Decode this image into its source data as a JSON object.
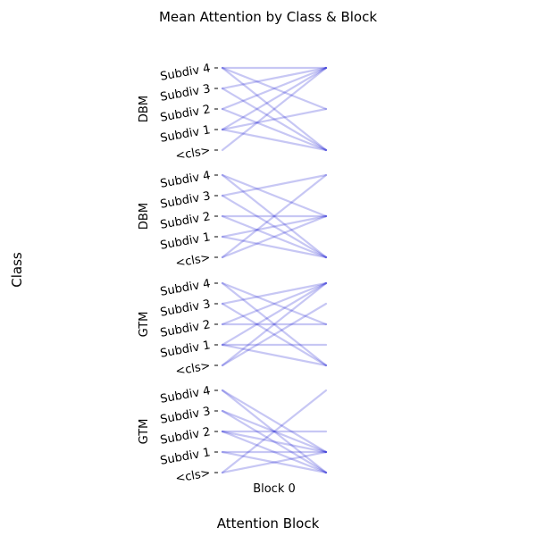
{
  "chart_data": {
    "type": "line",
    "title": "Mean Attention by Class & Block",
    "xlabel": "Attention Block",
    "ylabel": "Class",
    "x_tick_labels": [
      "Block 0"
    ],
    "y_tick_labels": [
      "<cls>",
      "Subdiv 1",
      "Subdiv 2",
      "Subdiv 3",
      "Subdiv 4"
    ],
    "line_color": "#0000cc",
    "panels": [
      {
        "ylabel": "DBM",
        "edges": [
          {
            "from": 4,
            "to": 0
          },
          {
            "from": 4,
            "to": 2
          },
          {
            "from": 4,
            "to": 4
          },
          {
            "from": 3,
            "to": 0
          },
          {
            "from": 3,
            "to": 4
          },
          {
            "from": 2,
            "to": 0
          },
          {
            "from": 2,
            "to": 4
          },
          {
            "from": 1,
            "to": 0
          },
          {
            "from": 1,
            "to": 2
          },
          {
            "from": 1,
            "to": 4
          },
          {
            "from": 0,
            "to": 4
          }
        ]
      },
      {
        "ylabel": "DBM",
        "edges": [
          {
            "from": 4,
            "to": 0
          },
          {
            "from": 4,
            "to": 2
          },
          {
            "from": 3,
            "to": 0
          },
          {
            "from": 3,
            "to": 4
          },
          {
            "from": 2,
            "to": 0
          },
          {
            "from": 2,
            "to": 2
          },
          {
            "from": 1,
            "to": 0
          },
          {
            "from": 1,
            "to": 2
          },
          {
            "from": 0,
            "to": 2
          },
          {
            "from": 0,
            "to": 4
          }
        ]
      },
      {
        "ylabel": "GTM",
        "edges": [
          {
            "from": 4,
            "to": 0
          },
          {
            "from": 4,
            "to": 2
          },
          {
            "from": 3,
            "to": 0
          },
          {
            "from": 3,
            "to": 4
          },
          {
            "from": 2,
            "to": 2
          },
          {
            "from": 2,
            "to": 4
          },
          {
            "from": 1,
            "to": 0
          },
          {
            "from": 1,
            "to": 1
          },
          {
            "from": 1,
            "to": 4
          },
          {
            "from": 0,
            "to": 3
          },
          {
            "from": 0,
            "to": 4
          }
        ]
      },
      {
        "ylabel": "GTM",
        "edges": [
          {
            "from": 4,
            "to": 0
          },
          {
            "from": 4,
            "to": 1
          },
          {
            "from": 3,
            "to": 0
          },
          {
            "from": 3,
            "to": 1
          },
          {
            "from": 2,
            "to": 0
          },
          {
            "from": 2,
            "to": 1
          },
          {
            "from": 2,
            "to": 2
          },
          {
            "from": 1,
            "to": 0
          },
          {
            "from": 1,
            "to": 1
          },
          {
            "from": 0,
            "to": 1
          },
          {
            "from": 0,
            "to": 4
          }
        ]
      }
    ]
  }
}
